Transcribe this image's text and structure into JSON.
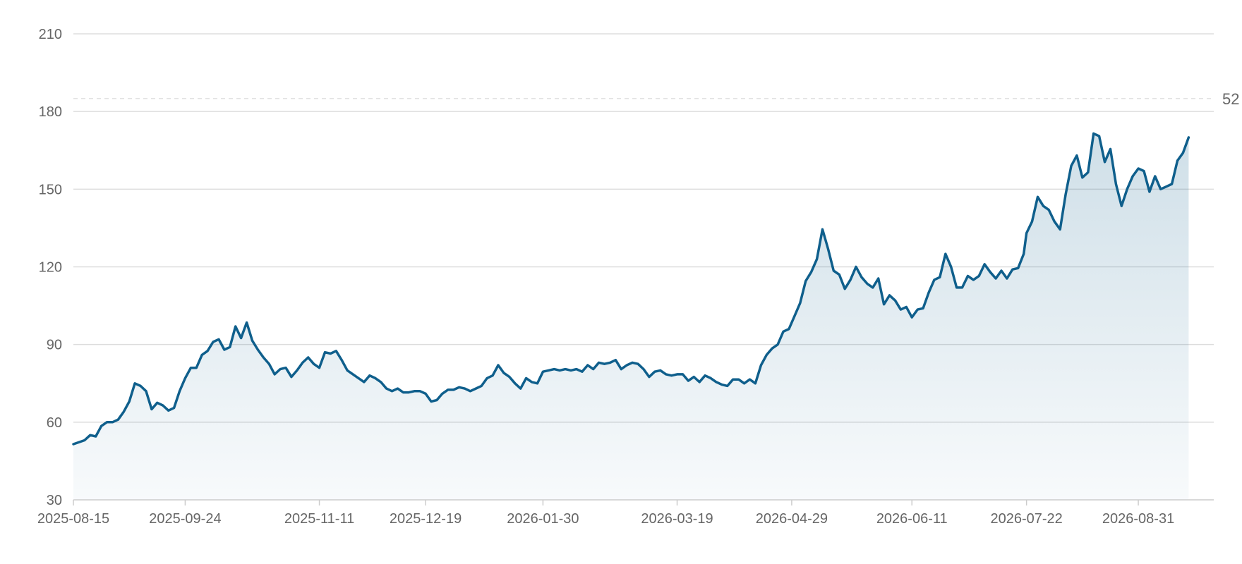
{
  "chart_data": {
    "type": "area",
    "title": "",
    "xlabel": "",
    "ylabel": "",
    "ylim": [
      30,
      210
    ],
    "xlim": [
      "2025-08-15",
      "2026-09-27"
    ],
    "yticks": [
      "30",
      "60",
      "90",
      "120",
      "150",
      "180",
      "210"
    ],
    "xticks": [
      {
        "date": "2025-08-15",
        "label": "2025-08-15"
      },
      {
        "date": "2025-09-24",
        "label": "2025-09-24"
      },
      {
        "date": "2025-11-11",
        "label": "2025-11-11"
      },
      {
        "date": "2025-12-19",
        "label": "2025-12-19"
      },
      {
        "date": "2026-01-30",
        "label": "2026-01-30"
      },
      {
        "date": "2026-03-19",
        "label": "2026-03-19"
      },
      {
        "date": "2026-04-29",
        "label": "2026-04-29"
      },
      {
        "date": "2026-06-11",
        "label": "2026-06-11"
      },
      {
        "date": "2026-07-22",
        "label": "2026-07-22"
      },
      {
        "date": "2026-08-31",
        "label": "2026-08-31"
      }
    ],
    "grid": true,
    "colors": {
      "line": "#0f5f8c",
      "fill": "#0f5f8c",
      "grid": "#dddddd",
      "reference": "#e2e2e2",
      "text": "#666666"
    },
    "reference_line": {
      "value": 185,
      "label": "52"
    },
    "series": [
      {
        "points": [
          [
            "2025-08-15",
            51.5
          ],
          [
            "2025-08-19",
            53
          ],
          [
            "2025-08-21",
            55
          ],
          [
            "2025-08-23",
            54.5
          ],
          [
            "2025-08-25",
            58.5
          ],
          [
            "2025-08-27",
            60
          ],
          [
            "2025-08-29",
            60
          ],
          [
            "2025-08-31",
            61
          ],
          [
            "2025-09-02",
            64
          ],
          [
            "2025-09-04",
            68
          ],
          [
            "2025-09-06",
            75
          ],
          [
            "2025-09-08",
            74
          ],
          [
            "2025-09-10",
            72
          ],
          [
            "2025-09-12",
            65
          ],
          [
            "2025-09-14",
            67.5
          ],
          [
            "2025-09-16",
            66.5
          ],
          [
            "2025-09-18",
            64.5
          ],
          [
            "2025-09-20",
            65.5
          ],
          [
            "2025-09-22",
            72
          ],
          [
            "2025-09-24",
            77
          ],
          [
            "2025-09-26",
            81
          ],
          [
            "2025-09-28",
            81
          ],
          [
            "2025-09-30",
            86
          ],
          [
            "2025-10-02",
            87.5
          ],
          [
            "2025-10-04",
            91
          ],
          [
            "2025-10-06",
            92
          ],
          [
            "2025-10-08",
            88
          ],
          [
            "2025-10-10",
            89
          ],
          [
            "2025-10-12",
            97
          ],
          [
            "2025-10-14",
            92.5
          ],
          [
            "2025-10-16",
            98.5
          ],
          [
            "2025-10-18",
            91.5
          ],
          [
            "2025-10-20",
            88
          ],
          [
            "2025-10-22",
            85
          ],
          [
            "2025-10-24",
            82.5
          ],
          [
            "2025-10-26",
            78.5
          ],
          [
            "2025-10-28",
            80.5
          ],
          [
            "2025-10-30",
            81
          ],
          [
            "2025-11-01",
            77.5
          ],
          [
            "2025-11-03",
            80
          ],
          [
            "2025-11-05",
            83
          ],
          [
            "2025-11-07",
            85
          ],
          [
            "2025-11-09",
            82.5
          ],
          [
            "2025-11-11",
            81
          ],
          [
            "2025-11-13",
            87
          ],
          [
            "2025-11-15",
            86.5
          ],
          [
            "2025-11-17",
            87.5
          ],
          [
            "2025-11-19",
            84
          ],
          [
            "2025-11-21",
            80
          ],
          [
            "2025-11-23",
            78.5
          ],
          [
            "2025-11-25",
            77
          ],
          [
            "2025-11-27",
            75.5
          ],
          [
            "2025-11-29",
            78
          ],
          [
            "2025-12-01",
            77
          ],
          [
            "2025-12-03",
            75.5
          ],
          [
            "2025-12-05",
            73
          ],
          [
            "2025-12-07",
            72
          ],
          [
            "2025-12-09",
            73
          ],
          [
            "2025-12-11",
            71.5
          ],
          [
            "2025-12-13",
            71.5
          ],
          [
            "2025-12-15",
            72
          ],
          [
            "2025-12-17",
            72
          ],
          [
            "2025-12-19",
            71
          ],
          [
            "2025-12-21",
            68
          ],
          [
            "2025-12-23",
            68.5
          ],
          [
            "2025-12-25",
            71
          ],
          [
            "2025-12-27",
            72.5
          ],
          [
            "2025-12-29",
            72.5
          ],
          [
            "2025-12-31",
            73.5
          ],
          [
            "2026-01-02",
            73
          ],
          [
            "2026-01-04",
            72
          ],
          [
            "2026-01-06",
            73
          ],
          [
            "2026-01-08",
            74
          ],
          [
            "2026-01-10",
            77
          ],
          [
            "2026-01-12",
            78
          ],
          [
            "2026-01-14",
            82
          ],
          [
            "2026-01-16",
            79
          ],
          [
            "2026-01-18",
            77.5
          ],
          [
            "2026-01-20",
            75
          ],
          [
            "2026-01-22",
            73
          ],
          [
            "2026-01-24",
            77
          ],
          [
            "2026-01-26",
            75.5
          ],
          [
            "2026-01-28",
            75
          ],
          [
            "2026-01-30",
            79.5
          ],
          [
            "2026-02-01",
            80
          ],
          [
            "2026-02-03",
            80.5
          ],
          [
            "2026-02-05",
            80
          ],
          [
            "2026-02-07",
            80.5
          ],
          [
            "2026-02-09",
            80
          ],
          [
            "2026-02-11",
            80.5
          ],
          [
            "2026-02-13",
            79.5
          ],
          [
            "2026-02-15",
            82
          ],
          [
            "2026-02-17",
            80.5
          ],
          [
            "2026-02-19",
            83
          ],
          [
            "2026-02-21",
            82.5
          ],
          [
            "2026-02-23",
            83
          ],
          [
            "2026-02-25",
            84
          ],
          [
            "2026-02-27",
            80.5
          ],
          [
            "2026-03-01",
            82
          ],
          [
            "2026-03-03",
            83
          ],
          [
            "2026-03-05",
            82.5
          ],
          [
            "2026-03-07",
            80.5
          ],
          [
            "2026-03-09",
            77.5
          ],
          [
            "2026-03-11",
            79.5
          ],
          [
            "2026-03-13",
            80
          ],
          [
            "2026-03-15",
            78.5
          ],
          [
            "2026-03-17",
            78
          ],
          [
            "2026-03-19",
            78.5
          ],
          [
            "2026-03-21",
            78.5
          ],
          [
            "2026-03-23",
            76
          ],
          [
            "2026-03-25",
            77.5
          ],
          [
            "2026-03-27",
            75.5
          ],
          [
            "2026-03-29",
            78
          ],
          [
            "2026-03-31",
            77
          ],
          [
            "2026-04-02",
            75.5
          ],
          [
            "2026-04-04",
            74.5
          ],
          [
            "2026-04-06",
            74
          ],
          [
            "2026-04-08",
            76.5
          ],
          [
            "2026-04-10",
            76.5
          ],
          [
            "2026-04-12",
            75
          ],
          [
            "2026-04-14",
            76.5
          ],
          [
            "2026-04-16",
            75
          ],
          [
            "2026-04-18",
            82
          ],
          [
            "2026-04-20",
            86
          ],
          [
            "2026-04-22",
            88.5
          ],
          [
            "2026-04-24",
            90
          ],
          [
            "2026-04-26",
            95
          ],
          [
            "2026-04-28",
            96
          ],
          [
            "2026-04-30",
            101
          ],
          [
            "2026-05-02",
            106
          ],
          [
            "2026-05-04",
            114.5
          ],
          [
            "2026-05-06",
            118
          ],
          [
            "2026-05-08",
            123
          ],
          [
            "2026-05-10",
            134.5
          ],
          [
            "2026-05-12",
            127
          ],
          [
            "2026-05-14",
            118.5
          ],
          [
            "2026-05-16",
            117
          ],
          [
            "2026-05-18",
            111.5
          ],
          [
            "2026-05-20",
            115
          ],
          [
            "2026-05-22",
            120
          ],
          [
            "2026-05-24",
            116
          ],
          [
            "2026-05-26",
            113.5
          ],
          [
            "2026-05-28",
            112
          ],
          [
            "2026-05-30",
            115.5
          ],
          [
            "2026-06-01",
            105.5
          ],
          [
            "2026-06-03",
            109
          ],
          [
            "2026-06-05",
            107
          ],
          [
            "2026-06-07",
            103.5
          ],
          [
            "2026-06-09",
            104.5
          ],
          [
            "2026-06-11",
            100.5
          ],
          [
            "2026-06-13",
            103.5
          ],
          [
            "2026-06-15",
            104
          ],
          [
            "2026-06-17",
            110
          ],
          [
            "2026-06-19",
            115
          ],
          [
            "2026-06-21",
            116
          ],
          [
            "2026-06-23",
            125
          ],
          [
            "2026-06-25",
            120
          ],
          [
            "2026-06-27",
            112
          ],
          [
            "2026-06-29",
            112
          ],
          [
            "2026-07-01",
            116.5
          ],
          [
            "2026-07-03",
            115
          ],
          [
            "2026-07-05",
            116.5
          ],
          [
            "2026-07-07",
            121
          ],
          [
            "2026-07-09",
            118
          ],
          [
            "2026-07-11",
            115.5
          ],
          [
            "2026-07-13",
            118.5
          ],
          [
            "2026-07-15",
            115.5
          ],
          [
            "2026-07-17",
            119
          ],
          [
            "2026-07-19",
            119.5
          ],
          [
            "2026-07-21",
            125
          ],
          [
            "2026-07-22",
            133
          ],
          [
            "2026-07-24",
            137.5
          ],
          [
            "2026-07-26",
            147
          ],
          [
            "2026-07-28",
            143.5
          ],
          [
            "2026-07-30",
            142
          ],
          [
            "2026-08-01",
            137.5
          ],
          [
            "2026-08-03",
            134.5
          ],
          [
            "2026-08-05",
            148
          ],
          [
            "2026-08-07",
            159
          ],
          [
            "2026-08-09",
            163
          ],
          [
            "2026-08-11",
            154.5
          ],
          [
            "2026-08-13",
            156.5
          ],
          [
            "2026-08-15",
            171.5
          ],
          [
            "2026-08-17",
            170.5
          ],
          [
            "2026-08-19",
            160.5
          ],
          [
            "2026-08-21",
            165.5
          ],
          [
            "2026-08-23",
            152
          ],
          [
            "2026-08-25",
            143.5
          ],
          [
            "2026-08-27",
            150
          ],
          [
            "2026-08-29",
            155
          ],
          [
            "2026-08-31",
            158
          ],
          [
            "2026-09-02",
            157
          ],
          [
            "2026-09-04",
            149
          ],
          [
            "2026-09-06",
            155
          ],
          [
            "2026-09-08",
            150
          ],
          [
            "2026-09-10",
            151
          ],
          [
            "2026-09-12",
            152
          ],
          [
            "2026-09-14",
            161
          ],
          [
            "2026-09-16",
            164
          ],
          [
            "2026-09-18",
            170
          ]
        ]
      }
    ]
  }
}
